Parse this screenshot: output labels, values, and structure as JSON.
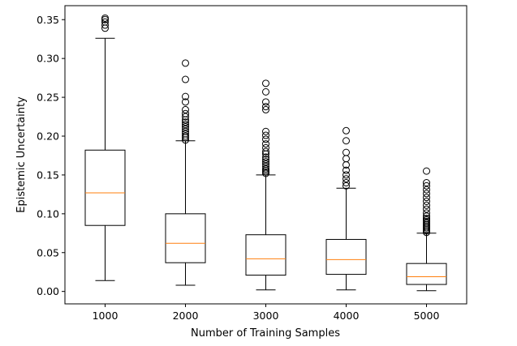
{
  "chart_data": {
    "type": "box",
    "title": "",
    "xlabel": "Number of Training Samples",
    "ylabel": "Epistemic Uncertainty",
    "ylim": [
      -0.016,
      0.368
    ],
    "yticks": [
      0.0,
      0.05,
      0.1,
      0.15,
      0.2,
      0.25,
      0.3,
      0.35
    ],
    "ytick_labels": [
      "0.00",
      "0.05",
      "0.10",
      "0.15",
      "0.20",
      "0.25",
      "0.30",
      "0.35"
    ],
    "categories": [
      "1000",
      "2000",
      "3000",
      "4000",
      "5000"
    ],
    "grid": false,
    "colors": {
      "box": "#000000",
      "median": "#ff7f0e",
      "outlier": "#000000"
    },
    "boxes": [
      {
        "category": "1000",
        "whislo": 0.014,
        "q1": 0.085,
        "med": 0.127,
        "q3": 0.182,
        "whishi": 0.326,
        "fliers": [
          0.339,
          0.343,
          0.347,
          0.35,
          0.352
        ]
      },
      {
        "category": "2000",
        "whislo": 0.008,
        "q1": 0.037,
        "med": 0.062,
        "q3": 0.1,
        "whishi": 0.194,
        "fliers": [
          0.195,
          0.198,
          0.2,
          0.203,
          0.206,
          0.209,
          0.212,
          0.215,
          0.218,
          0.221,
          0.225,
          0.229,
          0.234,
          0.244,
          0.251,
          0.273,
          0.294
        ]
      },
      {
        "category": "3000",
        "whislo": 0.002,
        "q1": 0.021,
        "med": 0.042,
        "q3": 0.073,
        "whishi": 0.15,
        "fliers": [
          0.152,
          0.154,
          0.156,
          0.158,
          0.161,
          0.164,
          0.167,
          0.17,
          0.173,
          0.177,
          0.18,
          0.185,
          0.19,
          0.196,
          0.201,
          0.206,
          0.234,
          0.238,
          0.244,
          0.257,
          0.268
        ]
      },
      {
        "category": "4000",
        "whislo": 0.002,
        "q1": 0.022,
        "med": 0.041,
        "q3": 0.067,
        "whishi": 0.133,
        "fliers": [
          0.136,
          0.14,
          0.145,
          0.15,
          0.156,
          0.163,
          0.171,
          0.179,
          0.194,
          0.207
        ]
      },
      {
        "category": "5000",
        "whislo": 0.001,
        "q1": 0.009,
        "med": 0.019,
        "q3": 0.036,
        "whishi": 0.075,
        "fliers": [
          0.076,
          0.078,
          0.08,
          0.082,
          0.084,
          0.086,
          0.088,
          0.09,
          0.092,
          0.094,
          0.097,
          0.101,
          0.106,
          0.111,
          0.116,
          0.121,
          0.126,
          0.131,
          0.136,
          0.14,
          0.155
        ]
      }
    ]
  }
}
